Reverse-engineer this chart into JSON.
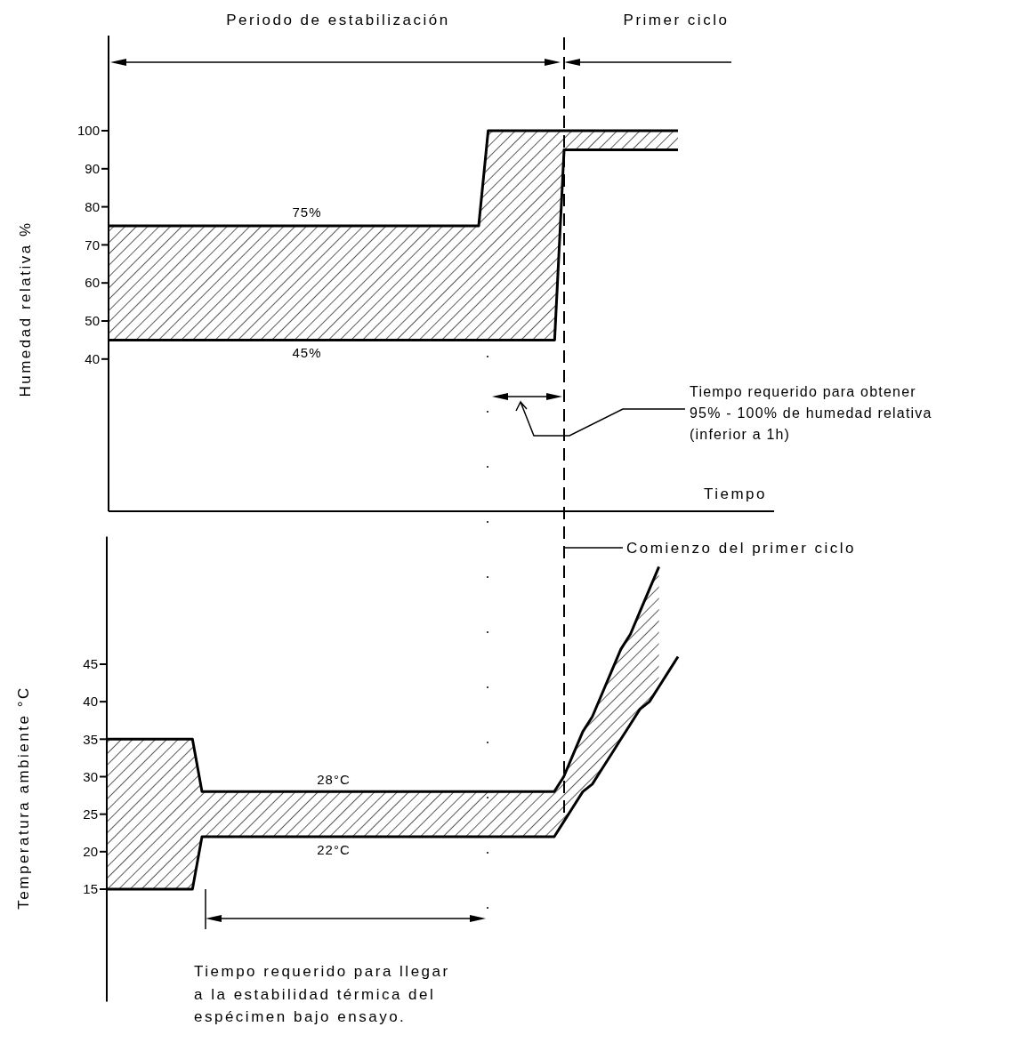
{
  "chart_data": [
    {
      "type": "line",
      "ylabel": "Humedad relativa %",
      "xlabel": "Tiempo",
      "categories": [
        null,
        null,
        null,
        null,
        null,
        null,
        null,
        null,
        null,
        null,
        null,
        null,
        null,
        null,
        null,
        null,
        null,
        null,
        null,
        null,
        null,
        null,
        null,
        null,
        null,
        null,
        null,
        null,
        null,
        null,
        null,
        null,
        null,
        null,
        null,
        null,
        null,
        null,
        null,
        null,
        null,
        null,
        null,
        null,
        null,
        null,
        null,
        null,
        null,
        null,
        null,
        null,
        null,
        null,
        null,
        null,
        null,
        null,
        null,
        null,
        null
      ],
      "series": [
        {
          "color": "#000000",
          "values": [
            75,
            75,
            75,
            75,
            75,
            75,
            75,
            75,
            75,
            75,
            75,
            75,
            75,
            75,
            75,
            75,
            75,
            75,
            75,
            75,
            75,
            75,
            75,
            75,
            75,
            75,
            75,
            75,
            75,
            75,
            75,
            75,
            75,
            75,
            75,
            75,
            75,
            75,
            75,
            75,
            100,
            100,
            100,
            100,
            100,
            100,
            100,
            100,
            100,
            100,
            100,
            100,
            100,
            100,
            100,
            100,
            100,
            100,
            100,
            100,
            100
          ],
          "lower": [
            45,
            45,
            45,
            45,
            45,
            45,
            45,
            45,
            45,
            45,
            45,
            45,
            45,
            45,
            45,
            45,
            45,
            45,
            45,
            45,
            45,
            45,
            45,
            45,
            45,
            45,
            45,
            45,
            45,
            45,
            45,
            45,
            45,
            45,
            45,
            45,
            45,
            45,
            45,
            45,
            45,
            45,
            45,
            45,
            45,
            45,
            45,
            45,
            95,
            95,
            95,
            95,
            95,
            95,
            95,
            95,
            95,
            95,
            95,
            95,
            95
          ],
          "upper": [
            75,
            75,
            75,
            75,
            75,
            75,
            75,
            75,
            75,
            75,
            75,
            75,
            75,
            75,
            75,
            75,
            75,
            75,
            75,
            75,
            75,
            75,
            75,
            75,
            75,
            75,
            75,
            75,
            75,
            75,
            75,
            75,
            75,
            75,
            75,
            75,
            75,
            75,
            75,
            75,
            100,
            100,
            100,
            100,
            100,
            100,
            100,
            100,
            100,
            100,
            100,
            100,
            100,
            100,
            100,
            100,
            100,
            100,
            100,
            100,
            100
          ]
        },
        {
          "color": "#000000",
          "values": [
            45,
            45,
            45,
            45,
            45,
            45,
            45,
            45,
            45,
            45,
            45,
            45,
            45,
            45,
            45,
            45,
            45,
            45,
            45,
            45,
            45,
            45,
            45,
            45,
            45,
            45,
            45,
            45,
            45,
            45,
            45,
            45,
            45,
            45,
            45,
            45,
            45,
            45,
            45,
            45,
            45,
            45,
            45,
            45,
            45,
            45,
            45,
            45,
            95,
            95,
            95,
            95,
            95,
            95,
            95,
            95,
            95,
            95,
            95,
            95,
            95
          ]
        }
      ],
      "ylim": [
        0,
        125
      ],
      "yticks": [
        40,
        50,
        60,
        70,
        80,
        90,
        100
      ],
      "annotations": [
        "Periodo de estabilización",
        "Primer ciclo",
        {
          "text": "75%",
          "y": 75
        },
        {
          "text": "45%",
          "y": 45
        },
        "Tiempo requerido para obtener\n95% - 100% de humedad relativa\n(inferior a 1h)"
      ]
    },
    {
      "type": "line",
      "ylabel": "Temperatura ambiente °C",
      "categories": [
        null,
        null,
        null,
        null,
        null,
        null,
        null,
        null,
        null,
        null,
        null,
        null,
        null,
        null,
        null,
        null,
        null,
        null,
        null,
        null,
        null,
        null,
        null,
        null,
        null,
        null,
        null,
        null,
        null,
        null,
        null,
        null,
        null,
        null,
        null,
        null,
        null,
        null,
        null,
        null,
        null,
        null,
        null,
        null,
        null,
        null,
        null,
        null,
        null,
        null,
        null,
        null,
        null,
        null,
        null,
        null,
        null,
        null,
        null,
        null,
        null
      ],
      "series": [
        {
          "color": "#000000",
          "values": [
            35,
            35,
            35,
            35,
            35,
            35,
            35,
            35,
            35,
            35,
            28,
            28,
            28,
            28,
            28,
            28,
            28,
            28,
            28,
            28,
            28,
            28,
            28,
            28,
            28,
            28,
            28,
            28,
            28,
            28,
            28,
            28,
            28,
            28,
            28,
            28,
            28,
            28,
            28,
            28,
            28,
            28,
            28,
            28,
            28,
            28,
            28,
            28,
            30,
            33,
            36,
            38,
            41,
            44,
            47,
            49,
            52,
            55,
            58,
            null,
            null
          ],
          "lower": [
            15,
            15,
            15,
            15,
            15,
            15,
            15,
            15,
            15,
            15,
            22,
            22,
            22,
            22,
            22,
            22,
            22,
            22,
            22,
            22,
            22,
            22,
            22,
            22,
            22,
            22,
            22,
            22,
            22,
            22,
            22,
            22,
            22,
            22,
            22,
            22,
            22,
            22,
            22,
            22,
            22,
            22,
            22,
            22,
            22,
            22,
            22,
            22,
            24,
            26,
            28,
            29,
            31,
            33,
            35,
            37,
            39,
            40,
            42,
            null,
            null
          ],
          "upper": [
            35,
            35,
            35,
            35,
            35,
            35,
            35,
            35,
            35,
            35,
            28,
            28,
            28,
            28,
            28,
            28,
            28,
            28,
            28,
            28,
            28,
            28,
            28,
            28,
            28,
            28,
            28,
            28,
            28,
            28,
            28,
            28,
            28,
            28,
            28,
            28,
            28,
            28,
            28,
            28,
            28,
            28,
            28,
            28,
            28,
            28,
            28,
            28,
            30,
            33,
            36,
            38,
            41,
            44,
            47,
            49,
            52,
            55,
            58,
            null,
            null
          ]
        },
        {
          "color": "#000000",
          "values": [
            15,
            15,
            15,
            15,
            15,
            15,
            15,
            15,
            15,
            15,
            22,
            22,
            22,
            22,
            22,
            22,
            22,
            22,
            22,
            22,
            22,
            22,
            22,
            22,
            22,
            22,
            22,
            22,
            22,
            22,
            22,
            22,
            22,
            22,
            22,
            22,
            22,
            22,
            22,
            22,
            22,
            22,
            22,
            22,
            22,
            22,
            22,
            22,
            24,
            26,
            28,
            29,
            31,
            33,
            35,
            37,
            39,
            40,
            42,
            44,
            46
          ]
        }
      ],
      "ylim": [
        0,
        62
      ],
      "yticks": [
        15,
        20,
        25,
        30,
        35,
        40,
        45
      ],
      "annotations": [
        {
          "text": "28°C",
          "y": 28
        },
        {
          "text": "22°C",
          "y": 22
        },
        "Tiempo requerido para llegar\na la estabilidad térmica del\nespécimen bajo ensayo.",
        "Comienzo del primer ciclo"
      ]
    }
  ]
}
